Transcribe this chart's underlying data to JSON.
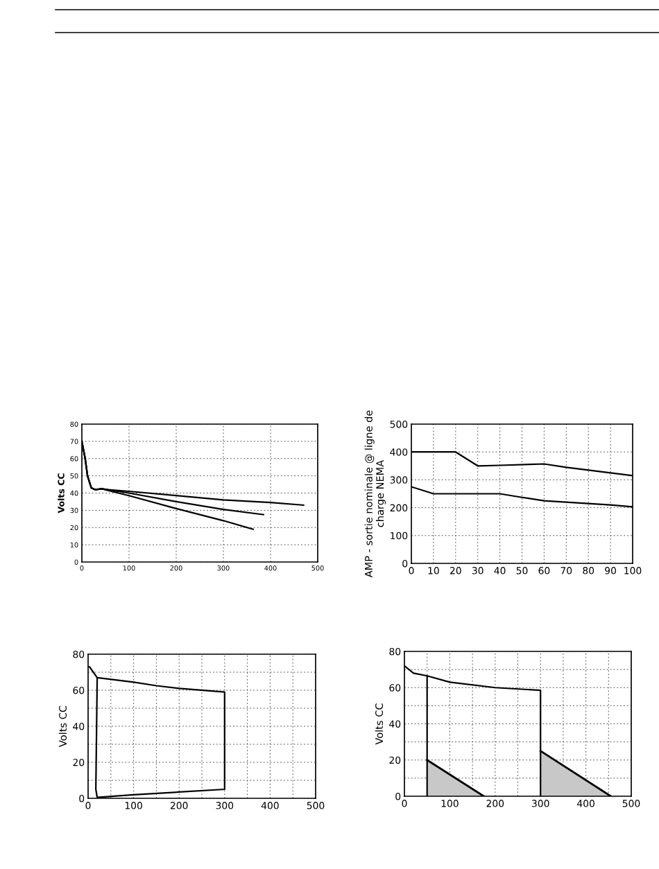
{
  "chart_data": [
    {
      "type": "line",
      "ylabel": "Volts CC",
      "xlim": [
        0,
        500
      ],
      "ylim": [
        0,
        80
      ],
      "xticks": [
        0,
        100,
        200,
        300,
        400,
        500
      ],
      "yticks": [
        0,
        10,
        20,
        30,
        40,
        50,
        60,
        70,
        80
      ],
      "grid": true,
      "series": [
        {
          "color": "#000000",
          "x": [
            0,
            7,
            12,
            20,
            28,
            42,
            55,
            100,
            200,
            300,
            400,
            470
          ],
          "values": [
            70,
            60,
            50,
            43,
            42,
            42.5,
            42,
            41,
            38.5,
            36,
            34.5,
            33
          ]
        },
        {
          "color": "#000000",
          "x": [
            0,
            7,
            12,
            20,
            28,
            42,
            55,
            100,
            200,
            300,
            385
          ],
          "values": [
            70,
            60,
            50,
            43,
            42,
            42.5,
            42,
            40,
            35,
            30.5,
            27.5
          ]
        },
        {
          "color": "#000000",
          "x": [
            0,
            7,
            12,
            20,
            28,
            42,
            55,
            100,
            200,
            300,
            363
          ],
          "values": [
            70,
            60,
            50,
            43,
            42,
            42.5,
            41.5,
            38.5,
            31,
            24,
            19
          ]
        }
      ]
    },
    {
      "type": "line",
      "ylabel": "AMP - sortie nominale @ ligne de\ncharge NEMA",
      "xlim": [
        0,
        100
      ],
      "ylim": [
        0,
        500
      ],
      "xticks": [
        0,
        10,
        20,
        30,
        40,
        50,
        60,
        70,
        80,
        90,
        100
      ],
      "yticks": [
        0,
        100,
        200,
        300,
        400,
        500
      ],
      "grid": true,
      "series": [
        {
          "color": "#000000",
          "x": [
            0,
            20,
            30,
            40,
            60,
            70,
            80,
            90,
            100
          ],
          "values": [
            400,
            400,
            350,
            352,
            357,
            345,
            335,
            325,
            315
          ]
        },
        {
          "color": "#000000",
          "x": [
            0,
            10,
            40,
            50,
            60,
            70,
            80,
            90,
            100
          ],
          "values": [
            275,
            250,
            250,
            237,
            225,
            220,
            215,
            210,
            203
          ]
        }
      ]
    },
    {
      "type": "line",
      "ylabel": "Volts CC",
      "xlim": [
        0,
        500
      ],
      "ylim": [
        0,
        80
      ],
      "xticks": [
        0,
        {
          "value": 50,
          "label": null
        },
        100,
        {
          "value": 150,
          "label": null
        },
        200,
        {
          "value": 250,
          "label": null
        },
        300,
        {
          "value": 350,
          "label": null
        },
        400,
        {
          "value": 450,
          "label": null
        },
        500
      ],
      "yticks": [
        0,
        {
          "value": 10,
          "label": null
        },
        20,
        {
          "value": 30,
          "label": null
        },
        40,
        {
          "value": 50,
          "label": null
        },
        60,
        {
          "value": 70,
          "label": null
        },
        80
      ],
      "grid": true,
      "series": [
        {
          "color": "#000000",
          "x": [
            3,
            20,
            100,
            150,
            200,
            300,
            300,
            200,
            100,
            20,
            17,
            20
          ],
          "values": [
            73,
            67,
            64.5,
            62.5,
            61,
            59,
            5,
            3.5,
            2,
            0.5,
            5,
            67
          ]
        }
      ]
    },
    {
      "type": "line",
      "ylabel": "Volts CC",
      "xlim": [
        0,
        500
      ],
      "ylim": [
        0,
        80
      ],
      "xticks": [
        0,
        {
          "value": 50,
          "label": null
        },
        100,
        {
          "value": 150,
          "label": null
        },
        200,
        {
          "value": 250,
          "label": null
        },
        300,
        {
          "value": 350,
          "label": null
        },
        400,
        {
          "value": 450,
          "label": null
        },
        500
      ],
      "yticks": [
        0,
        {
          "value": 10,
          "label": null
        },
        20,
        {
          "value": 30,
          "label": null
        },
        40,
        {
          "value": 50,
          "label": null
        },
        60,
        {
          "value": 70,
          "label": null
        },
        80
      ],
      "grid": true,
      "series": [
        {
          "color": "#000000",
          "x": [
            0,
            20,
            50
          ],
          "values": [
            72,
            68,
            66.5
          ]
        },
        {
          "color": "#000000",
          "x": [
            50,
            50,
            100,
            200,
            300,
            300
          ],
          "values": [
            0,
            66.5,
            63,
            60,
            58.5,
            0
          ]
        },
        {
          "type": "area",
          "color": "#c8c8c8",
          "x": [
            50,
            175
          ],
          "values": [
            20,
            0
          ]
        },
        {
          "type": "area",
          "color": "#c8c8c8",
          "x": [
            300,
            455
          ],
          "values": [
            25,
            0
          ]
        }
      ]
    }
  ]
}
